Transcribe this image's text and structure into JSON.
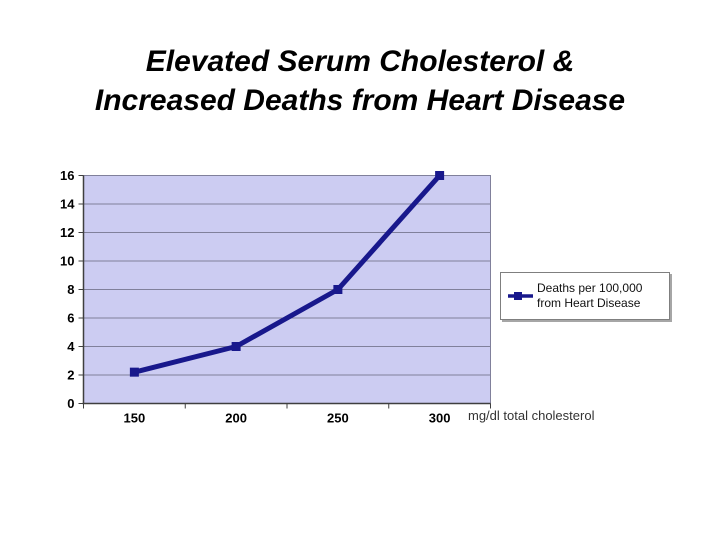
{
  "slide": {
    "title_line1": "Elevated Serum Cholesterol &",
    "title_line2": "Increased Deaths from Heart Disease"
  },
  "legend": {
    "label": "Deaths per 100,000 from Heart Disease"
  },
  "chart_data": {
    "type": "line",
    "title": "",
    "categories": [
      "150",
      "200",
      "250",
      "300"
    ],
    "series": [
      {
        "name": "Deaths per 100,000 from Heart Disease",
        "values": [
          2.2,
          4,
          8,
          16
        ]
      }
    ],
    "xlabel": "mg/dl total cholesterol",
    "ylabel": "",
    "ylim": [
      0,
      16
    ],
    "ytick_step": 2,
    "grid": "horizontal",
    "legend_position": "right",
    "marker": "square",
    "colors": {
      "series_line": "#18188C",
      "plot_background": "#CCCCF2",
      "gridline": "#80809B",
      "axis": "#3F3F3F",
      "tick_text": "#000000"
    }
  }
}
